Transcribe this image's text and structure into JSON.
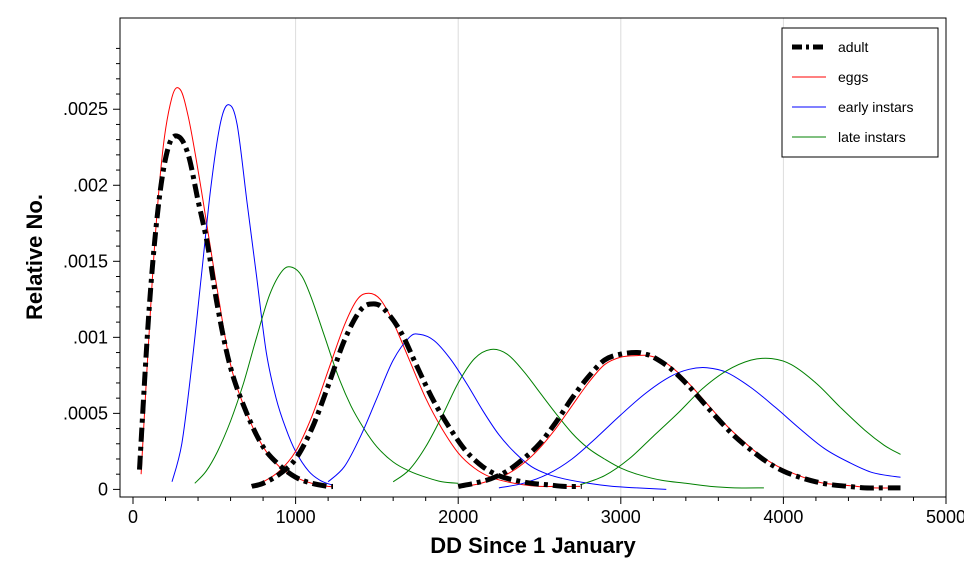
{
  "chart_data": {
    "type": "line",
    "xlabel": "DD Since 1 January",
    "ylabel": "Relative No.",
    "xlim": [
      -80,
      5000
    ],
    "ylim": [
      -5e-05,
      0.0031
    ],
    "xticks": [
      0,
      1000,
      2000,
      3000,
      4000,
      5000
    ],
    "xtick_labels": [
      "0",
      "1000",
      "2000",
      "3000",
      "4000",
      "5000"
    ],
    "yticks": [
      0,
      0.0005,
      0.001,
      0.0015,
      0.002,
      0.0025
    ],
    "ytick_labels": [
      "0",
      ".0005",
      ".001",
      ".0015",
      ".002",
      ".0025"
    ],
    "grid": "vertical",
    "legend_position": "top-right",
    "legend_order": [
      "adult",
      "eggs",
      "early instars",
      "late instars"
    ],
    "series_styles": {
      "adult": {
        "color": "#000000",
        "dashed": true
      },
      "eggs": {
        "color": "#ff0000",
        "dashed": false
      },
      "early instars": {
        "color": "#0000ff",
        "dashed": false
      },
      "late instars": {
        "color": "#008000",
        "dashed": false
      }
    },
    "series": [
      {
        "name": "adult",
        "generation": 1,
        "x": [
          40,
          100,
          160,
          220,
          280,
          340,
          400,
          460,
          520,
          600,
          700,
          800,
          900,
          1000,
          1100,
          1200,
          1230
        ],
        "y": [
          0.00013,
          0.0012,
          0.0019,
          0.00226,
          0.00232,
          0.0022,
          0.0019,
          0.0016,
          0.0012,
          0.0008,
          0.0005,
          0.00028,
          0.00016,
          8e-05,
          4e-05,
          2e-05,
          2e-05
        ]
      },
      {
        "name": "eggs",
        "generation": 1,
        "x": [
          50,
          120,
          180,
          240,
          290,
          340,
          400,
          460,
          520,
          600,
          700,
          800,
          900,
          1000,
          1100,
          1200,
          1230
        ],
        "y": [
          0.0001,
          0.0014,
          0.0022,
          0.00258,
          0.00263,
          0.00245,
          0.0021,
          0.0017,
          0.0013,
          0.00082,
          0.0005,
          0.00028,
          0.00015,
          8e-05,
          4e-05,
          2e-05,
          2e-05
        ]
      },
      {
        "name": "early instars",
        "generation": 1,
        "x": [
          240,
          300,
          360,
          420,
          480,
          540,
          590,
          640,
          700,
          760,
          820,
          880,
          940,
          1000,
          1080,
          1150,
          1220
        ],
        "y": [
          5e-05,
          0.0003,
          0.0008,
          0.0014,
          0.002,
          0.00242,
          0.00253,
          0.0024,
          0.0019,
          0.0014,
          0.0009,
          0.0006,
          0.0004,
          0.00025,
          0.00012,
          6e-05,
          3e-05
        ]
      },
      {
        "name": "late instars",
        "generation": 1,
        "x": [
          380,
          450,
          520,
          600,
          680,
          760,
          840,
          920,
          980,
          1040,
          1100,
          1180,
          1260,
          1340,
          1420,
          1500,
          1600,
          1700,
          1800,
          1900,
          2000
        ],
        "y": [
          4e-05,
          0.00012,
          0.00025,
          0.00045,
          0.0007,
          0.001,
          0.00128,
          0.00144,
          0.00146,
          0.0014,
          0.00125,
          0.001,
          0.00075,
          0.00055,
          0.0004,
          0.00028,
          0.00018,
          0.00012,
          8e-05,
          5e-05,
          4e-05
        ]
      },
      {
        "name": "adult",
        "generation": 2,
        "x": [
          730,
          800,
          900,
          1000,
          1100,
          1200,
          1300,
          1400,
          1480,
          1550,
          1650,
          1750,
          1850,
          1950,
          2050,
          2150,
          2250,
          2350,
          2450,
          2550,
          2650,
          2760
        ],
        "y": [
          2e-05,
          4e-05,
          0.0001,
          0.0002,
          0.0004,
          0.00068,
          0.00098,
          0.00118,
          0.00122,
          0.00118,
          0.00103,
          0.0008,
          0.00058,
          0.0004,
          0.00025,
          0.00015,
          9e-05,
          6e-05,
          4e-05,
          3e-05,
          2e-05,
          2e-05
        ]
      },
      {
        "name": "eggs",
        "generation": 2,
        "x": [
          730,
          800,
          900,
          1000,
          1100,
          1200,
          1300,
          1380,
          1450,
          1520,
          1600,
          1700,
          1800,
          1900,
          2000,
          2100,
          2200,
          2300,
          2400,
          2500,
          2600,
          2750
        ],
        "y": [
          2e-05,
          5e-05,
          0.00012,
          0.00025,
          0.00048,
          0.00078,
          0.00108,
          0.00125,
          0.00129,
          0.00125,
          0.0011,
          0.00085,
          0.0006,
          0.0004,
          0.00024,
          0.00014,
          8e-05,
          5e-05,
          3e-05,
          2e-05,
          2e-05,
          2e-05
        ]
      },
      {
        "name": "early instars",
        "generation": 2,
        "x": [
          1200,
          1300,
          1400,
          1500,
          1600,
          1700,
          1760,
          1850,
          1950,
          2050,
          2150,
          2250,
          2350,
          2450,
          2550,
          2650,
          2800,
          2950,
          3100,
          3280
        ],
        "y": [
          5e-05,
          0.00015,
          0.00035,
          0.0006,
          0.00085,
          0.001,
          0.00102,
          0.00098,
          0.00086,
          0.0007,
          0.00052,
          0.00036,
          0.00024,
          0.00015,
          0.0001,
          7e-05,
          4e-05,
          2e-05,
          1e-05,
          0
        ]
      },
      {
        "name": "late instars",
        "generation": 2,
        "x": [
          1600,
          1700,
          1800,
          1900,
          2000,
          2100,
          2200,
          2300,
          2400,
          2500,
          2600,
          2700,
          2800,
          2900,
          3000,
          3100,
          3250,
          3400,
          3550,
          3700,
          3880
        ],
        "y": [
          5e-05,
          0.00013,
          0.00028,
          0.00048,
          0.0007,
          0.00086,
          0.00092,
          0.00089,
          0.00078,
          0.00064,
          0.0005,
          0.00037,
          0.00027,
          0.0002,
          0.00014,
          0.0001,
          6e-05,
          4e-05,
          2e-05,
          1e-05,
          1e-05
        ]
      },
      {
        "name": "adult",
        "generation": 3,
        "x": [
          2000,
          2100,
          2200,
          2300,
          2400,
          2500,
          2600,
          2700,
          2800,
          2900,
          3000,
          3100,
          3150,
          3200,
          3300,
          3400,
          3500,
          3600,
          3700,
          3800,
          3900,
          4000,
          4100,
          4200,
          4300,
          4400,
          4500,
          4600,
          4720
        ],
        "y": [
          2e-05,
          4e-05,
          7e-05,
          0.00012,
          0.0002,
          0.0003,
          0.00044,
          0.0006,
          0.00074,
          0.00085,
          0.00089,
          0.0009,
          0.00089,
          0.00087,
          0.0008,
          0.0007,
          0.00058,
          0.00046,
          0.00035,
          0.00026,
          0.00018,
          0.00012,
          8e-05,
          5e-05,
          3e-05,
          2e-05,
          1e-05,
          1e-05,
          1e-05
        ]
      },
      {
        "name": "eggs",
        "generation": 3,
        "x": [
          2000,
          2100,
          2200,
          2300,
          2400,
          2500,
          2600,
          2700,
          2800,
          2900,
          3000,
          3100,
          3170,
          3250,
          3350,
          3450,
          3550,
          3650,
          3750,
          3850,
          3950,
          4050,
          4150,
          4250,
          4350,
          4450,
          4550,
          4720
        ],
        "y": [
          2e-05,
          3e-05,
          6e-05,
          0.0001,
          0.00017,
          0.00027,
          0.0004,
          0.00055,
          0.0007,
          0.00082,
          0.00087,
          0.00088,
          0.00088,
          0.00085,
          0.00077,
          0.00066,
          0.00054,
          0.00042,
          0.00032,
          0.00023,
          0.00016,
          0.00011,
          7e-05,
          4e-05,
          3e-05,
          2e-05,
          1e-05,
          1e-05
        ]
      },
      {
        "name": "early instars",
        "generation": 3,
        "x": [
          2250,
          2400,
          2550,
          2700,
          2850,
          3000,
          3150,
          3300,
          3420,
          3530,
          3650,
          3800,
          3950,
          4100,
          4250,
          4400,
          4550,
          4720
        ],
        "y": [
          1e-05,
          4e-05,
          0.0001,
          0.0002,
          0.00034,
          0.00049,
          0.00063,
          0.00074,
          0.00079,
          0.0008,
          0.00077,
          0.00067,
          0.00054,
          0.0004,
          0.00027,
          0.00018,
          0.00011,
          8e-05
        ]
      },
      {
        "name": "late instars",
        "generation": 3,
        "x": [
          2750,
          2900,
          3050,
          3200,
          3350,
          3500,
          3650,
          3800,
          3930,
          4050,
          4200,
          4350,
          4500,
          4620,
          4720
        ],
        "y": [
          3e-05,
          9e-05,
          0.0002,
          0.00035,
          0.0005,
          0.00066,
          0.00078,
          0.00085,
          0.00086,
          0.00082,
          0.0007,
          0.00054,
          0.00039,
          0.00029,
          0.00023
        ]
      }
    ]
  }
}
